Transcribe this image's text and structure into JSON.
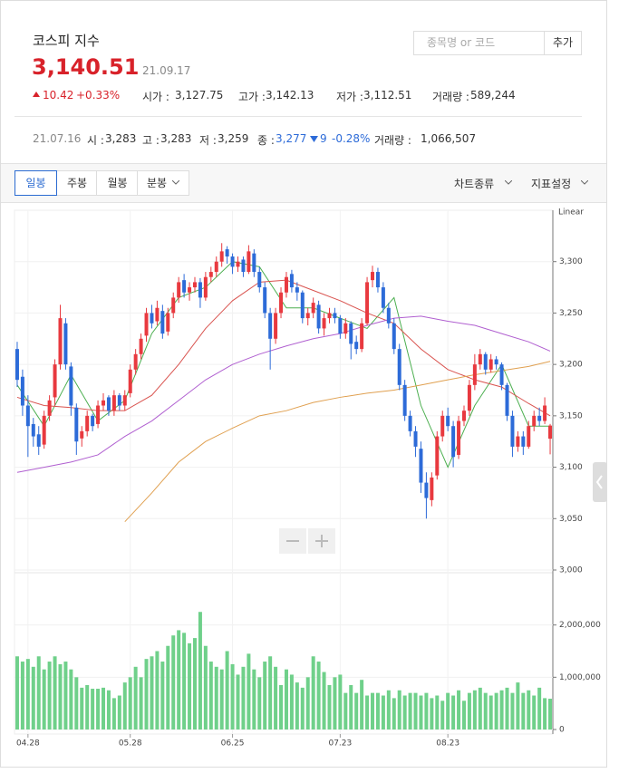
{
  "header": {
    "title": "코스피 지수",
    "price": "3,140.51",
    "date": "21.09.17",
    "change": "10.42",
    "change_pct": "+0.33%",
    "stats": [
      {
        "label": "시가 :",
        "value": "3,127.75"
      },
      {
        "label": "고가 :",
        "value": "3,142.13"
      },
      {
        "label": "저가 :",
        "value": "3,112.51"
      },
      {
        "label": "거래량 :",
        "value": "589,244"
      }
    ]
  },
  "search": {
    "placeholder": "종목명 or 코드",
    "button": "추가"
  },
  "hover": {
    "date": "21.07.16",
    "items": [
      {
        "label": "시 :",
        "value": "3,283"
      },
      {
        "label": "고 :",
        "value": "3,283"
      },
      {
        "label": "저 :",
        "value": "3,259"
      },
      {
        "label": "종 :",
        "value": "3,277"
      }
    ],
    "change": "9",
    "change_pct": "-0.28%",
    "volume_label": "거래량 :",
    "volume": "1,066,507"
  },
  "tabs": [
    "일봉",
    "주봉",
    "월봉",
    "분봉"
  ],
  "menus": [
    "차트종류",
    "지표설정"
  ],
  "chart_data": {
    "type": "candlestick",
    "scale_label": "Linear",
    "up_color": "#e8393f",
    "down_color": "#2d6bd8",
    "volume_color": "#6fd08a",
    "ylim": [
      3000,
      3350
    ],
    "yticks": [
      {
        "value": 3000,
        "label": "3,000"
      },
      {
        "value": 3050,
        "label": "3,050"
      },
      {
        "value": 3100,
        "label": "3,100"
      },
      {
        "value": 3150,
        "label": "3,150"
      },
      {
        "value": 3200,
        "label": "3,200"
      },
      {
        "value": 3250,
        "label": "3,250"
      },
      {
        "value": 3300,
        "label": "3,300"
      }
    ],
    "y2lim": [
      0,
      3000000
    ],
    "y2ticks": [
      0,
      {
        "value": 1000000,
        "label": "1,000,000"
      },
      {
        "value": 2000000,
        "label": "2,000,000"
      }
    ],
    "xticks": [
      {
        "value": 2,
        "label": "04.28"
      },
      {
        "value": 21,
        "label": "05.28"
      },
      {
        "value": 40,
        "label": "06.25"
      },
      {
        "value": 60,
        "label": "07.23"
      },
      {
        "value": 80,
        "label": "08.23"
      }
    ],
    "candles": [
      [
        3215,
        3222,
        3178,
        3185
      ],
      [
        3188,
        3195,
        3150,
        3160
      ],
      [
        3160,
        3170,
        3110,
        3140
      ],
      [
        3142,
        3148,
        3120,
        3130
      ],
      [
        3132,
        3140,
        3112,
        3120
      ],
      [
        3122,
        3155,
        3118,
        3150
      ],
      [
        3150,
        3170,
        3145,
        3165
      ],
      [
        3168,
        3205,
        3160,
        3200
      ],
      [
        3200,
        3258,
        3195,
        3245
      ],
      [
        3240,
        3245,
        3195,
        3200
      ],
      [
        3198,
        3202,
        3150,
        3160
      ],
      [
        3158,
        3162,
        3112,
        3125
      ],
      [
        3128,
        3140,
        3120,
        3135
      ],
      [
        3135,
        3155,
        3130,
        3150
      ],
      [
        3150,
        3152,
        3135,
        3140
      ],
      [
        3142,
        3165,
        3138,
        3160
      ],
      [
        3160,
        3172,
        3155,
        3165
      ],
      [
        3168,
        3170,
        3150,
        3155
      ],
      [
        3155,
        3175,
        3150,
        3170
      ],
      [
        3170,
        3172,
        3155,
        3160
      ],
      [
        3160,
        3175,
        3155,
        3170
      ],
      [
        3172,
        3200,
        3168,
        3195
      ],
      [
        3195,
        3215,
        3190,
        3210
      ],
      [
        3210,
        3230,
        3205,
        3225
      ],
      [
        3228,
        3255,
        3222,
        3250
      ],
      [
        3250,
        3258,
        3235,
        3240
      ],
      [
        3242,
        3262,
        3238,
        3255
      ],
      [
        3252,
        3258,
        3225,
        3230
      ],
      [
        3232,
        3255,
        3228,
        3250
      ],
      [
        3250,
        3270,
        3245,
        3265
      ],
      [
        3265,
        3285,
        3260,
        3280
      ],
      [
        3282,
        3288,
        3265,
        3270
      ],
      [
        3270,
        3280,
        3262,
        3275
      ],
      [
        3275,
        3285,
        3270,
        3280
      ],
      [
        3280,
        3284,
        3255,
        3265
      ],
      [
        3265,
        3290,
        3262,
        3285
      ],
      [
        3285,
        3295,
        3280,
        3290
      ],
      [
        3290,
        3305,
        3285,
        3300
      ],
      [
        3300,
        3318,
        3295,
        3310
      ],
      [
        3312,
        3315,
        3298,
        3305
      ],
      [
        3305,
        3308,
        3288,
        3295
      ],
      [
        3295,
        3305,
        3290,
        3300
      ],
      [
        3302,
        3305,
        3285,
        3290
      ],
      [
        3290,
        3316,
        3288,
        3310
      ],
      [
        3308,
        3312,
        3285,
        3290
      ],
      [
        3290,
        3295,
        3270,
        3275
      ],
      [
        3275,
        3280,
        3245,
        3250
      ],
      [
        3250,
        3255,
        3195,
        3225
      ],
      [
        3225,
        3255,
        3220,
        3250
      ],
      [
        3250,
        3275,
        3245,
        3270
      ],
      [
        3270,
        3290,
        3265,
        3285
      ],
      [
        3288,
        3292,
        3270,
        3275
      ],
      [
        3275,
        3280,
        3262,
        3270
      ],
      [
        3270,
        3272,
        3240,
        3245
      ],
      [
        3245,
        3255,
        3238,
        3250
      ],
      [
        3250,
        3265,
        3245,
        3260
      ],
      [
        3258,
        3262,
        3230,
        3235
      ],
      [
        3235,
        3250,
        3228,
        3245
      ],
      [
        3245,
        3255,
        3240,
        3250
      ],
      [
        3250,
        3255,
        3240,
        3245
      ],
      [
        3245,
        3248,
        3225,
        3230
      ],
      [
        3230,
        3245,
        3225,
        3240
      ],
      [
        3240,
        3242,
        3205,
        3220
      ],
      [
        3222,
        3228,
        3210,
        3215
      ],
      [
        3215,
        3245,
        3212,
        3240
      ],
      [
        3240,
        3285,
        3238,
        3280
      ],
      [
        3282,
        3296,
        3275,
        3290
      ],
      [
        3290,
        3294,
        3270,
        3275
      ],
      [
        3275,
        3280,
        3250,
        3255
      ],
      [
        3255,
        3260,
        3235,
        3240
      ],
      [
        3240,
        3245,
        3210,
        3215
      ],
      [
        3215,
        3220,
        3175,
        3180
      ],
      [
        3180,
        3185,
        3145,
        3150
      ],
      [
        3150,
        3155,
        3130,
        3135
      ],
      [
        3135,
        3140,
        3110,
        3120
      ],
      [
        3118,
        3125,
        3075,
        3085
      ],
      [
        3085,
        3095,
        3050,
        3070
      ],
      [
        3068,
        3095,
        3062,
        3090
      ],
      [
        3092,
        3135,
        3088,
        3130
      ],
      [
        3130,
        3155,
        3125,
        3150
      ],
      [
        3150,
        3158,
        3135,
        3140
      ],
      [
        3140,
        3145,
        3100,
        3110
      ],
      [
        3112,
        3150,
        3108,
        3145
      ],
      [
        3145,
        3160,
        3140,
        3155
      ],
      [
        3155,
        3185,
        3150,
        3180
      ],
      [
        3180,
        3210,
        3175,
        3200
      ],
      [
        3200,
        3215,
        3195,
        3210
      ],
      [
        3210,
        3212,
        3190,
        3195
      ],
      [
        3195,
        3210,
        3192,
        3205
      ],
      [
        3205,
        3208,
        3195,
        3200
      ],
      [
        3200,
        3202,
        3175,
        3180
      ],
      [
        3180,
        3182,
        3145,
        3150
      ],
      [
        3150,
        3155,
        3110,
        3120
      ],
      [
        3120,
        3135,
        3115,
        3130
      ],
      [
        3130,
        3135,
        3112,
        3120
      ],
      [
        3120,
        3145,
        3118,
        3140
      ],
      [
        3140,
        3155,
        3135,
        3150
      ],
      [
        3150,
        3158,
        3140,
        3145
      ],
      [
        3145,
        3168,
        3142,
        3160
      ],
      [
        3127.75,
        3142.13,
        3112.51,
        3140.51
      ]
    ],
    "volume": [
      1400000,
      1300000,
      1350000,
      1200000,
      1400000,
      1150000,
      1300000,
      1400000,
      1250000,
      1300000,
      1150000,
      1000000,
      800000,
      850000,
      780000,
      780000,
      800000,
      750000,
      600000,
      650000,
      900000,
      1000000,
      1200000,
      1000000,
      1350000,
      1400000,
      1500000,
      1300000,
      1600000,
      1800000,
      1900000,
      1850000,
      1650000,
      1750000,
      2250000,
      1600000,
      1300000,
      1200000,
      1150000,
      1500000,
      1250000,
      1050000,
      1200000,
      1450000,
      1150000,
      1000000,
      1300000,
      1400000,
      1200000,
      850000,
      1150000,
      1050000,
      900000,
      800000,
      1000000,
      1400000,
      1300000,
      1100000,
      850000,
      1000000,
      1050000,
      700000,
      850000,
      700000,
      950000,
      650000,
      700000,
      700000,
      650000,
      750000,
      600000,
      750000,
      650000,
      700000,
      700000,
      650000,
      700000,
      600000,
      650000,
      550000,
      700000,
      650000,
      750000,
      550000,
      700000,
      750000,
      800000,
      700000,
      650000,
      700000,
      750000,
      800000,
      700000,
      900000,
      700000,
      750000,
      650000,
      800000,
      600000,
      589244
    ],
    "ma_x": [
      0,
      5,
      10,
      15,
      20,
      25,
      30,
      35,
      40,
      45,
      50,
      55,
      60,
      65,
      70,
      75,
      80,
      85,
      90,
      95,
      99
    ],
    "ma": [
      {
        "color": "#4caf50",
        "values": [
          3180,
          3140,
          3190,
          3145,
          3165,
          3230,
          3265,
          3275,
          3300,
          3295,
          3255,
          3255,
          3245,
          3235,
          3265,
          3160,
          3100,
          3160,
          3200,
          3140,
          3140
        ]
      },
      {
        "color": "#d9534f",
        "values": [
          3168,
          3160,
          3158,
          3155,
          3155,
          3170,
          3200,
          3235,
          3262,
          3280,
          3282,
          3272,
          3262,
          3250,
          3240,
          3215,
          3195,
          3185,
          3178,
          3162,
          3150
        ]
      },
      {
        "color": "#b05fd0",
        "values": [
          3095,
          3100,
          3105,
          3112,
          3130,
          3145,
          3165,
          3185,
          3200,
          3210,
          3218,
          3225,
          3230,
          3238,
          3245,
          3247,
          3242,
          3238,
          3230,
          3222,
          3213
        ]
      },
      {
        "color": "#e0a050",
        "values": [
          null,
          null,
          null,
          null,
          3047,
          3075,
          3105,
          3125,
          3138,
          3150,
          3155,
          3163,
          3168,
          3172,
          3175,
          3180,
          3185,
          3190,
          3194,
          3198,
          3203
        ]
      }
    ]
  }
}
